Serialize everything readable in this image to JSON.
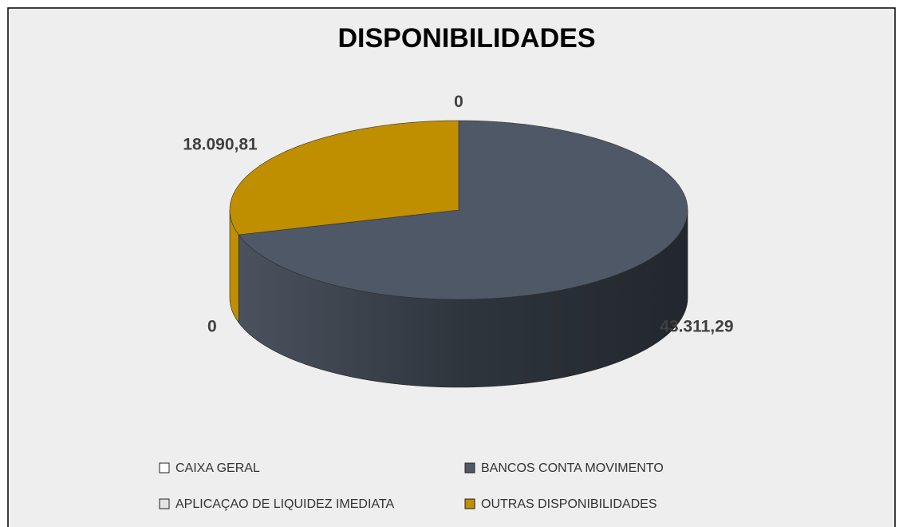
{
  "chart_data": {
    "type": "pie",
    "title": "DISPONIBILIDADES",
    "categories": [
      "CAIXA GERAL",
      "BANCOS CONTA MOVIMENTO",
      "APLICAÇAO DE LIQUIDEZ IMEDIATA",
      "OUTRAS DISPONIBILIDADES"
    ],
    "values": [
      0,
      43311.29,
      0,
      18090.81
    ],
    "value_labels": [
      "0",
      "43.311,29",
      "0",
      "18.090,81"
    ],
    "colors": [
      "#ffffff",
      "#4f5866",
      "#e4e4e4",
      "#bf8f00"
    ]
  }
}
